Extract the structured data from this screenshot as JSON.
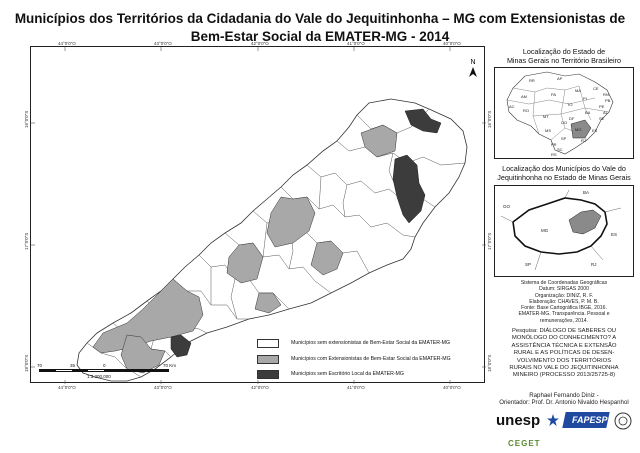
{
  "title": {
    "line1": "Municípios dos Territórios da Cidadania do Vale do Jequitinhonha – MG com Extensionistas de",
    "line2": "Bem-Estar Social da EMATER-MG - 2014"
  },
  "grid_labels": {
    "top": [
      "44°0'0\"O",
      "43°0'0\"O",
      "42°0'0\"O",
      "41°0'0\"O",
      "40°0'0\"O"
    ],
    "bottom": [
      "44°0'0\"O",
      "43°0'0\"O",
      "42°0'0\"O",
      "41°0'0\"O",
      "40°0'0\"O"
    ],
    "left": [
      "16°0'0\"S",
      "17°0'0\"S",
      "18°0'0\"S"
    ],
    "right": [
      "16°0'0\"S",
      "17°0'0\"S",
      "18°0'0\"S"
    ]
  },
  "north_arrow": {
    "label": "N"
  },
  "legend": {
    "items": [
      {
        "label": "Municípios sem extensionistas de Bem-Estar Social da EMATER-MG",
        "color": "#ffffff"
      },
      {
        "label": "Municípios com Extensionistas de Bem-Estar Social da EMATER-MG",
        "color": "#a8a8a8"
      },
      {
        "label": "Municípios sem Escritório Local da EMATER-MG",
        "color": "#3c3c3c"
      }
    ]
  },
  "scale_bar": {
    "ticks": [
      "70",
      "35",
      "0",
      "70 Km"
    ],
    "ratio": "1:3.300.000"
  },
  "inset_brazil": {
    "title_line1": "Localização do Estado de",
    "title_line2": "Minas Gerais no Território Brasileiro",
    "labels": [
      "RR",
      "AP",
      "AM",
      "PA",
      "MA",
      "CE",
      "RN",
      "PB",
      "PI",
      "PE",
      "AL",
      "AC",
      "RO",
      "TO",
      "BA",
      "SE",
      "MT",
      "GO",
      "DF",
      "MG",
      "ES",
      "MS",
      "SP",
      "RJ",
      "PR",
      "SC",
      "RS"
    ]
  },
  "inset_mg": {
    "title_line1": "Localização dos Municípios do Vale do",
    "title_line2": "Jequitinhonha no Estado de Minas Gerais",
    "labels": [
      "BA",
      "GO",
      "MG",
      "ES",
      "SP",
      "RJ"
    ]
  },
  "metadata": {
    "lines": [
      "Sistema de Coordenadas Geográficas",
      "Datum: SIRGAS 2000",
      "Organização: DINIZ, R. F.",
      "Elaboração: CHAVES, P. M. B.",
      "Fonte: Base Cartográfica IBGE, 2016.",
      "EMATER-MG. Transparência. Pessoal e",
      "remunerações, 2014."
    ]
  },
  "research": {
    "lines": [
      "Pesquisa: DIÁLOGO DE SABERES OU",
      "MONÓLOGO DO CONHECIMENTO? A",
      "ASSISTÊNCIA TÉCNICA E EXTENSÃO",
      "RURAL E AS POLÍTICAS DE DESEN-",
      "VOLVIMENTO DOS TERRITÓRIOS",
      "RURAIS NO VALE DO JEQUITINHONHA",
      "MINEIRO (PROCESSO 2013/25725-8)"
    ]
  },
  "credits": {
    "line1": "Raphael Fernando Diniz -",
    "line2": "Orientador: Prof. Dr. Antonio Nivaldo Hespanhol"
  },
  "logos": {
    "unesp": "unesp",
    "fapesp": "FAPESP",
    "ceget": "CEGET"
  }
}
